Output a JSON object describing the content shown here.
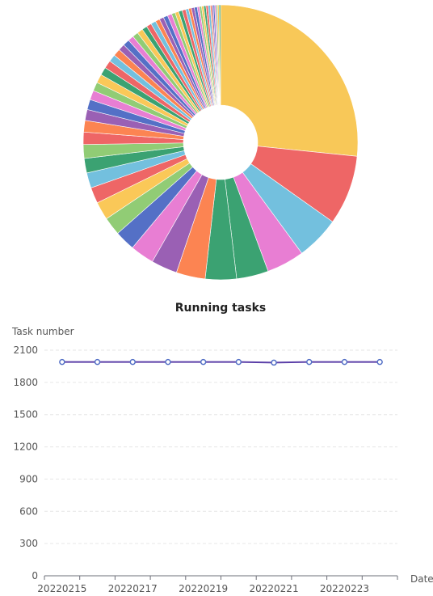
{
  "chart_data": [
    {
      "type": "pie",
      "donut": true,
      "note_values": "many small slices, approximated",
      "colors": [
        "#f8c858",
        "#ee6666",
        "#73c0de",
        "#e87ed3",
        "#3ba272",
        "#3ba272",
        "#fc8452",
        "#9a60b4",
        "#e87ed3",
        "#5470c6",
        "#91cc75",
        "#fac858",
        "#ee6666",
        "#73c0de",
        "#3ba272",
        "#91cc75",
        "#ee6666",
        "#fc8452",
        "#9a60b4",
        "#5470c6",
        "#e87ed3",
        "#91cc75",
        "#fac858",
        "#3ba272",
        "#ee6666",
        "#73c0de",
        "#fc8452",
        "#9a60b4",
        "#5470c6",
        "#e87ed3",
        "#91cc75",
        "#fac858",
        "#3ba272",
        "#ee6666",
        "#73c0de",
        "#fc8452",
        "#9a60b4",
        "#5470c6",
        "#e87ed3",
        "#91cc75",
        "#fac858",
        "#3ba272",
        "#ee6666",
        "#73c0de",
        "#fc8452",
        "#9a60b4",
        "#5470c6",
        "#e87ed3",
        "#91cc75",
        "#fac858",
        "#3ba272",
        "#ee6666",
        "#73c0de",
        "#fc8452",
        "#9a60b4",
        "#5470c6",
        "#e87ed3",
        "#91cc75",
        "#fac858",
        "#3ba272"
      ],
      "values": [
        312,
        96,
        60,
        52,
        44,
        43,
        40,
        36,
        33,
        28,
        25,
        25,
        22,
        21,
        20,
        19,
        17,
        16,
        15,
        14,
        13,
        12,
        12,
        11,
        11,
        10,
        10,
        9,
        9,
        8,
        8,
        8,
        7,
        7,
        7,
        6,
        6,
        6,
        6,
        5,
        5,
        5,
        5,
        4,
        4,
        4,
        4,
        3,
        3,
        3,
        3,
        3,
        3,
        2,
        2,
        2,
        2,
        2,
        2,
        2
      ]
    },
    {
      "type": "line",
      "title": "Running tasks",
      "ylabel": "Task number",
      "xlabel": "Date",
      "x": [
        "20220215",
        "20220216",
        "20220217",
        "20220218",
        "20220219",
        "20220220",
        "20220221",
        "20220222",
        "20220223",
        "20220224"
      ],
      "x_tick_labels": [
        "20220215",
        "20220217",
        "20220219",
        "20220221",
        "20220223"
      ],
      "values": [
        1990,
        1990,
        1990,
        1990,
        1990,
        1990,
        1984,
        1990,
        1990,
        1990
      ],
      "yticks": [
        0,
        300,
        600,
        900,
        1200,
        1500,
        1800,
        2100
      ],
      "ylim": [
        0,
        2100
      ],
      "color": "#5b3fa8",
      "grid": true
    }
  ]
}
